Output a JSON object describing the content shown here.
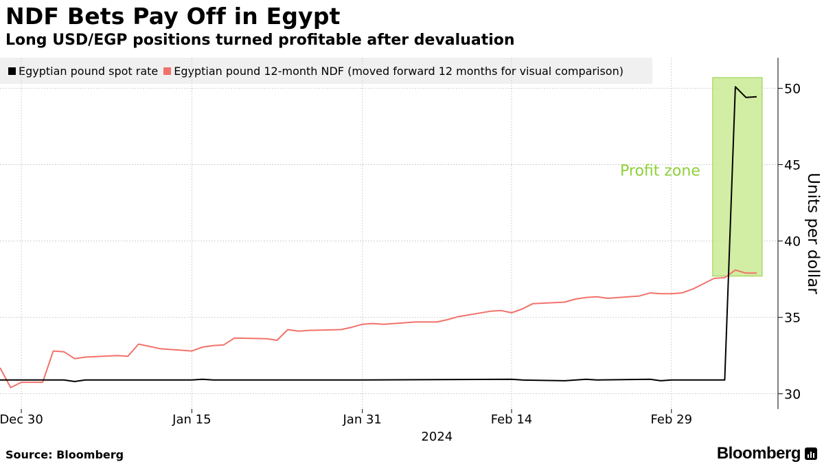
{
  "chart_data": {
    "type": "line",
    "title": "NDF Bets Pay Off in Egypt",
    "subtitle": "Long USD/EGP positions turned profitable after devaluation",
    "ylabel": "Units per dollar",
    "ylim": [
      29,
      52
    ],
    "yticks": [
      30,
      35,
      40,
      45,
      50
    ],
    "x_start": "2023-12-28",
    "x_end": "2024-03-10",
    "xticks": [
      {
        "date": "2023-12-30",
        "label": "Dec 30"
      },
      {
        "date": "2024-01-15",
        "label": "Jan 15"
      },
      {
        "date": "2024-01-31",
        "label": "Jan 31"
      },
      {
        "date": "2024-02-14",
        "label": "Feb 14"
      },
      {
        "date": "2024-02-29",
        "label": "Feb 29"
      }
    ],
    "year_label": "2024",
    "grid": true,
    "legend_position": "top-left",
    "series": [
      {
        "name": "Egyptian pound spot rate",
        "color": "#000000",
        "points": [
          [
            "2023-12-28",
            30.9
          ],
          [
            "2023-12-29",
            30.9
          ],
          [
            "2024-01-01",
            30.9
          ],
          [
            "2024-01-02",
            30.9
          ],
          [
            "2024-01-03",
            30.9
          ],
          [
            "2024-01-04",
            30.8
          ],
          [
            "2024-01-05",
            30.9
          ],
          [
            "2024-01-08",
            30.9
          ],
          [
            "2024-01-12",
            30.9
          ],
          [
            "2024-01-15",
            30.9
          ],
          [
            "2024-01-16",
            30.95
          ],
          [
            "2024-01-17",
            30.9
          ],
          [
            "2024-01-31",
            30.9
          ],
          [
            "2024-02-14",
            30.95
          ],
          [
            "2024-02-15",
            30.9
          ],
          [
            "2024-02-19",
            30.85
          ],
          [
            "2024-02-21",
            30.95
          ],
          [
            "2024-02-22",
            30.9
          ],
          [
            "2024-02-27",
            30.95
          ],
          [
            "2024-02-28",
            30.85
          ],
          [
            "2024-02-29",
            30.9
          ],
          [
            "2024-03-05",
            30.9
          ],
          [
            "2024-03-06",
            50.1
          ],
          [
            "2024-03-07",
            49.4
          ],
          [
            "2024-03-08",
            49.45
          ]
        ]
      },
      {
        "name": "Egyptian pound 12-month NDF (moved forward 12 months for visual comparison)",
        "color": "#f2716a",
        "points": [
          [
            "2023-12-28",
            31.7
          ],
          [
            "2023-12-29",
            30.4
          ],
          [
            "2023-12-30",
            30.75
          ],
          [
            "2024-01-01",
            30.75
          ],
          [
            "2024-01-02",
            32.8
          ],
          [
            "2024-01-03",
            32.75
          ],
          [
            "2024-01-04",
            32.3
          ],
          [
            "2024-01-05",
            32.4
          ],
          [
            "2024-01-08",
            32.5
          ],
          [
            "2024-01-09",
            32.45
          ],
          [
            "2024-01-10",
            33.25
          ],
          [
            "2024-01-11",
            33.1
          ],
          [
            "2024-01-12",
            32.95
          ],
          [
            "2024-01-15",
            32.8
          ],
          [
            "2024-01-16",
            33.05
          ],
          [
            "2024-01-17",
            33.15
          ],
          [
            "2024-01-18",
            33.2
          ],
          [
            "2024-01-19",
            33.65
          ],
          [
            "2024-01-22",
            33.6
          ],
          [
            "2024-01-23",
            33.5
          ],
          [
            "2024-01-24",
            34.2
          ],
          [
            "2024-01-25",
            34.1
          ],
          [
            "2024-01-26",
            34.15
          ],
          [
            "2024-01-29",
            34.2
          ],
          [
            "2024-01-30",
            34.35
          ],
          [
            "2024-01-31",
            34.55
          ],
          [
            "2024-02-01",
            34.6
          ],
          [
            "2024-02-02",
            34.55
          ],
          [
            "2024-02-05",
            34.7
          ],
          [
            "2024-02-06",
            34.7
          ],
          [
            "2024-02-07",
            34.7
          ],
          [
            "2024-02-08",
            34.85
          ],
          [
            "2024-02-09",
            35.05
          ],
          [
            "2024-02-12",
            35.4
          ],
          [
            "2024-02-13",
            35.45
          ],
          [
            "2024-02-14",
            35.3
          ],
          [
            "2024-02-15",
            35.55
          ],
          [
            "2024-02-16",
            35.9
          ],
          [
            "2024-02-19",
            36.0
          ],
          [
            "2024-02-20",
            36.2
          ],
          [
            "2024-02-21",
            36.3
          ],
          [
            "2024-02-22",
            36.35
          ],
          [
            "2024-02-23",
            36.25
          ],
          [
            "2024-02-26",
            36.4
          ],
          [
            "2024-02-27",
            36.6
          ],
          [
            "2024-02-28",
            36.55
          ],
          [
            "2024-02-29",
            36.55
          ],
          [
            "2024-03-01",
            36.6
          ],
          [
            "2024-03-02",
            36.85
          ],
          [
            "2024-03-04",
            37.55
          ],
          [
            "2024-03-05",
            37.6
          ],
          [
            "2024-03-06",
            38.1
          ],
          [
            "2024-03-07",
            37.9
          ],
          [
            "2024-03-08",
            37.9
          ]
        ]
      }
    ],
    "annotation": {
      "label": "Profit zone",
      "x_from": "2024-03-04",
      "x_to": "2024-03-08",
      "y_from": 37.7,
      "y_to": 50.7,
      "fill": "#cdeb9a",
      "stroke": "#8fcf3c",
      "text_color": "#8fcf3c"
    }
  },
  "source": "Source: Bloomberg",
  "brand": "Bloomberg"
}
